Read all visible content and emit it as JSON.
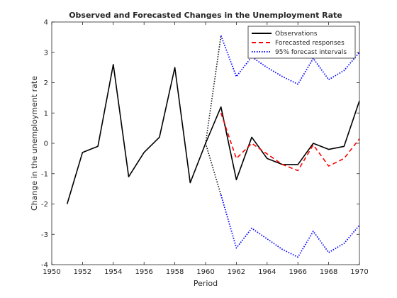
{
  "chart_data": {
    "type": "line",
    "title": "Observed and Forecasted Changes in the Unemployment Rate",
    "xlabel": "Period",
    "ylabel": "Change in the unemployment rate",
    "xlim": [
      1950,
      1970
    ],
    "ylim": [
      -4,
      4
    ],
    "xticks": [
      "1950",
      "1952",
      "1954",
      "1956",
      "1958",
      "1960",
      "1962",
      "1964",
      "1966",
      "1968",
      "1970"
    ],
    "yticks": [
      "-4",
      "-3",
      "-2",
      "-1",
      "0",
      "1",
      "2",
      "3",
      "4"
    ],
    "grid": false,
    "legend_position": "top-right",
    "series": [
      {
        "name": "Observations",
        "style": "solid",
        "color": "#000000",
        "x": [
          1951,
          1952,
          1953,
          1954,
          1955,
          1956,
          1957,
          1958,
          1959,
          1960,
          1961,
          1962,
          1963,
          1964,
          1965,
          1966,
          1967,
          1968,
          1969,
          1970
        ],
        "y": [
          -2.0,
          -0.3,
          -0.1,
          2.6,
          -1.1,
          -0.3,
          0.2,
          2.5,
          -1.3,
          0.0,
          1.2,
          -1.2,
          0.2,
          -0.5,
          -0.7,
          -0.7,
          0.0,
          -0.2,
          -0.1,
          1.4
        ]
      },
      {
        "name": "Forecasted responses",
        "style": "dashed",
        "color": "#ff0000",
        "x": [
          1961,
          1962,
          1963,
          1964,
          1965,
          1966,
          1967,
          1968,
          1969,
          1970
        ],
        "y": [
          1.0,
          -0.5,
          0.0,
          -0.35,
          -0.7,
          -0.9,
          -0.05,
          -0.75,
          -0.5,
          0.15
        ]
      },
      {
        "name": "95% forecast intervals",
        "style": "dotted",
        "color": "#0000ff",
        "x": [
          1961,
          1962,
          1963,
          1964,
          1965,
          1966,
          1967,
          1968,
          1969,
          1970
        ],
        "y": [
          3.55,
          2.2,
          2.85,
          2.5,
          2.2,
          1.95,
          2.8,
          2.1,
          2.4,
          3.0
        ]
      },
      {
        "name": "",
        "style": "dotted",
        "color": "#0000ff",
        "x": [
          1961,
          1962,
          1963,
          1964,
          1965,
          1966,
          1967,
          1968,
          1969,
          1970
        ],
        "y": [
          -1.7,
          -3.45,
          -2.8,
          -3.15,
          -3.5,
          -3.75,
          -2.9,
          -3.6,
          -3.3,
          -2.7
        ]
      }
    ],
    "connectors": {
      "style": "dotted",
      "color": "#000000",
      "from": [
        1960,
        0.0
      ],
      "to_upper": [
        1961,
        3.55
      ],
      "to_lower": [
        1961,
        -1.7
      ]
    }
  }
}
